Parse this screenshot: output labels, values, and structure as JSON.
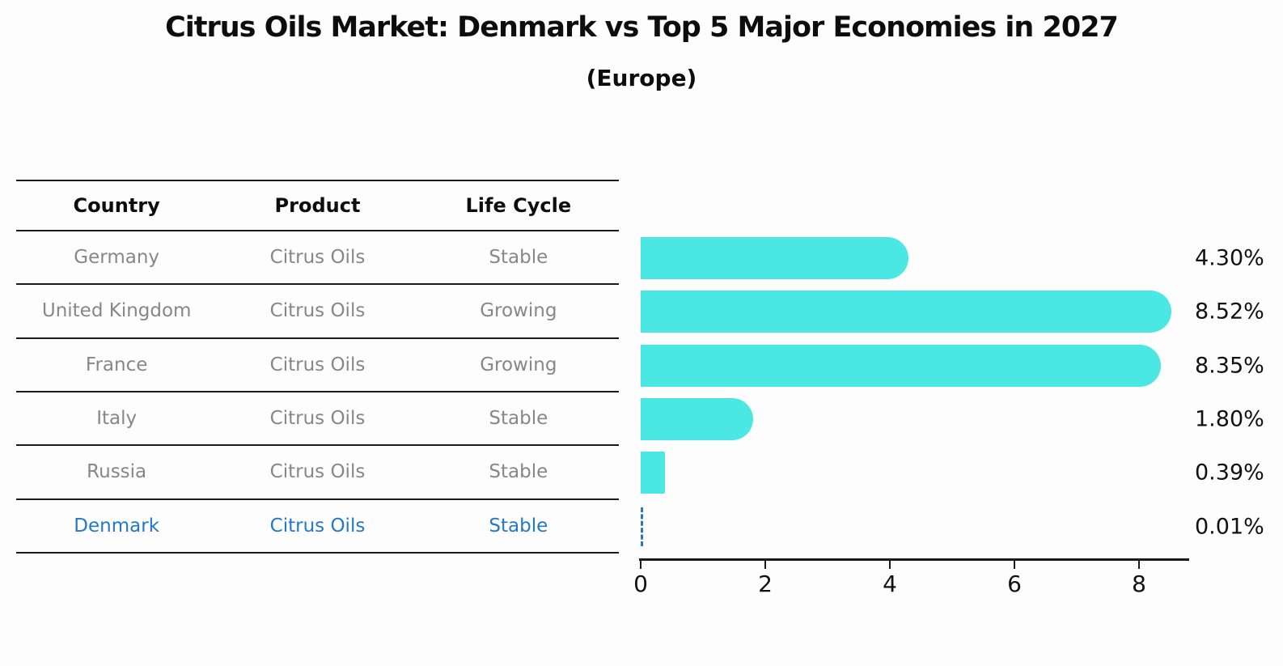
{
  "title": "Citrus Oils Market: Denmark vs Top 5 Major Economies in 2027",
  "subtitle": "(Europe)",
  "table": {
    "headers": [
      "Country",
      "Product",
      "Life Cycle"
    ],
    "rows": [
      {
        "country": "Germany",
        "product": "Citrus Oils",
        "life_cycle": "Stable",
        "highlight": false
      },
      {
        "country": "United Kingdom",
        "product": "Citrus Oils",
        "life_cycle": "Growing",
        "highlight": false
      },
      {
        "country": "France",
        "product": "Citrus Oils",
        "life_cycle": "Growing",
        "highlight": false
      },
      {
        "country": "Italy",
        "product": "Citrus Oils",
        "life_cycle": "Stable",
        "highlight": false
      },
      {
        "country": "Russia",
        "product": "Citrus Oils",
        "life_cycle": "Stable",
        "highlight": true
      }
    ],
    "highlight_row": {
      "country": "Denmark",
      "product": "Citrus Oils",
      "life_cycle": "Stable",
      "highlight": true
    }
  },
  "chart_data": {
    "type": "bar",
    "orientation": "horizontal",
    "title": "Citrus Oils Market: Denmark vs Top 5 Major Economies in 2027",
    "subtitle": "(Europe)",
    "categories": [
      "Germany",
      "United Kingdom",
      "France",
      "Italy",
      "Russia",
      "Denmark"
    ],
    "values": [
      4.3,
      8.52,
      8.35,
      1.8,
      0.39,
      0.01
    ],
    "value_labels": [
      "4.30%",
      "8.52%",
      "8.35%",
      "1.80%",
      "0.39%",
      "0.01%"
    ],
    "xticks": [
      0,
      2,
      4,
      6,
      8
    ],
    "xlim": [
      0,
      8.83
    ],
    "grid": false,
    "legend": "none",
    "bar_color": "#4ae7e3",
    "near_zero_marker_color": "#2878be",
    "near_zero_marker_style": "dashed-outline",
    "highlight_text_color": "#2479c6"
  }
}
